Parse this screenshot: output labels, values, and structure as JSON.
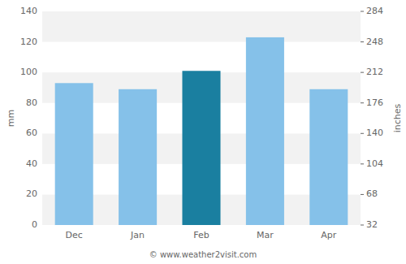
{
  "chart_data": {
    "type": "bar",
    "categories": [
      "Dec",
      "Jan",
      "Feb",
      "Mar",
      "Apr"
    ],
    "values": [
      93,
      89,
      101,
      123,
      89
    ],
    "colors": [
      "#85c1e9",
      "#85c1e9",
      "#1a7fa0",
      "#85c1e9",
      "#85c1e9"
    ],
    "ylabel": "mm",
    "y2label": "inches",
    "ylim": [
      0,
      140
    ],
    "yticks": [
      0,
      20,
      40,
      60,
      80,
      100,
      120,
      140
    ],
    "y2lim": [
      32,
      284
    ],
    "y2ticks": [
      32,
      68,
      104,
      140,
      176,
      212,
      248,
      284
    ],
    "grid": true,
    "annotations": [
      "© www.weather2visit.com"
    ]
  }
}
